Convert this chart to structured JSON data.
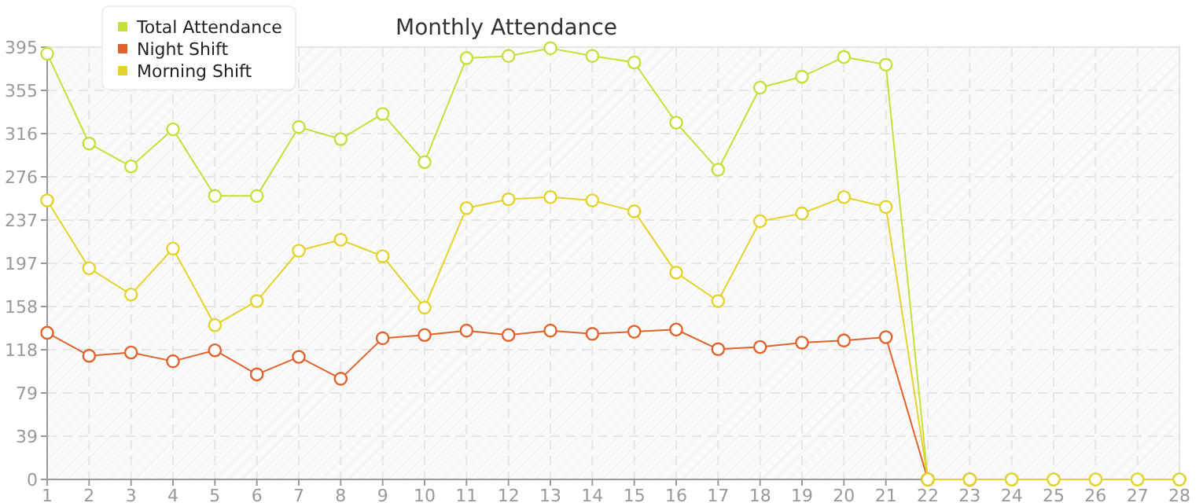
{
  "chart_data": {
    "type": "line",
    "title": "Monthly Attendance",
    "x": [
      1,
      2,
      3,
      4,
      5,
      6,
      7,
      8,
      9,
      10,
      11,
      12,
      13,
      14,
      15,
      16,
      17,
      18,
      19,
      20,
      21,
      22,
      23,
      24,
      25,
      26,
      27,
      28
    ],
    "series": [
      {
        "name": "Total Attendance",
        "color": "#c5e03a",
        "values": [
          389,
          307,
          286,
          320,
          259,
          259,
          322,
          311,
          334,
          290,
          385,
          387,
          394,
          387,
          381,
          326,
          283,
          358,
          368,
          386,
          379,
          0,
          0,
          0,
          0,
          0,
          0,
          0
        ]
      },
      {
        "name": "Night Shift",
        "color": "#e0622c",
        "values": [
          134,
          113,
          116,
          108,
          118,
          96,
          112,
          92,
          129,
          132,
          136,
          132,
          136,
          133,
          135,
          137,
          119,
          121,
          125,
          127,
          130,
          0,
          0,
          null,
          null,
          null,
          null,
          null
        ]
      },
      {
        "name": "Morning Shift",
        "color": "#e3d32c",
        "values": [
          255,
          193,
          169,
          211,
          141,
          163,
          209,
          219,
          204,
          157,
          248,
          256,
          258,
          255,
          245,
          189,
          163,
          236,
          243,
          258,
          249,
          0,
          0,
          0,
          0,
          0,
          0,
          0
        ]
      }
    ],
    "xlim": [
      1,
      28
    ],
    "xticks": [
      1,
      2,
      3,
      4,
      5,
      6,
      7,
      8,
      9,
      10,
      11,
      12,
      13,
      14,
      15,
      16,
      17,
      18,
      19,
      20,
      21,
      22,
      23,
      24,
      25,
      26,
      27,
      28
    ],
    "ylim": [
      0,
      395
    ],
    "yticks": [
      0,
      {
        "value": 39.5,
        "label": "39"
      },
      79,
      {
        "value": 118.5,
        "label": "118"
      },
      158,
      {
        "value": 197.5,
        "label": "197"
      },
      237,
      {
        "value": 276.5,
        "label": "276"
      },
      316,
      {
        "value": 355.5,
        "label": "355"
      },
      395
    ],
    "grid": true,
    "legend": "top left",
    "marker": "circle",
    "line_style": "solid"
  }
}
